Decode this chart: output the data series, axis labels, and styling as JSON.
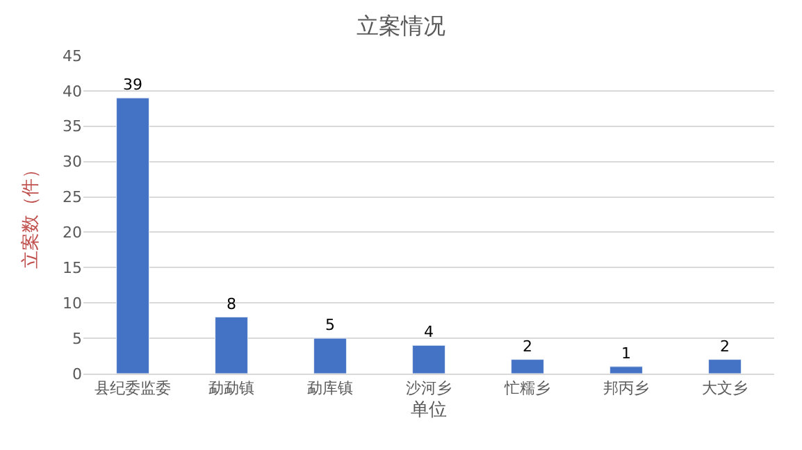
{
  "chart_data": {
    "type": "bar",
    "title": "立案情况",
    "xlabel": "单位",
    "ylabel": "立案数（件）",
    "categories": [
      "县纪委监委",
      "勐勐镇",
      "勐库镇",
      "沙河乡",
      "忙糯乡",
      "邦丙乡",
      "大文乡"
    ],
    "values": [
      39,
      8,
      5,
      4,
      2,
      1,
      2
    ],
    "color": "#4472c4",
    "ylim": [
      0,
      45
    ],
    "yticks": [
      0,
      5,
      10,
      15,
      20,
      25,
      30,
      35,
      40,
      45
    ],
    "grid": "y",
    "data_labels": true,
    "legend": false
  }
}
